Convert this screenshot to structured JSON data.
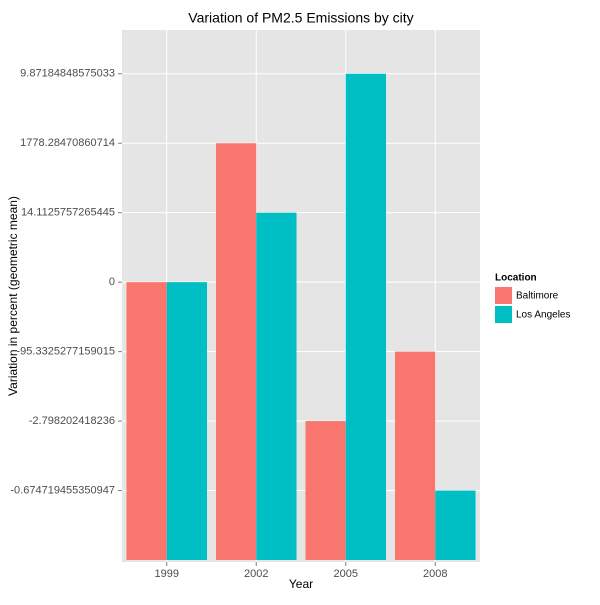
{
  "chart_data": {
    "type": "bar",
    "title": "Variation of PM2.5 Emissions by city",
    "x_label": "Year",
    "y_label": "Variation in percent (geometric mean)",
    "legend_title": "Location",
    "legend_position": "right",
    "categories": [
      "1999",
      "2002",
      "2005",
      "2008"
    ],
    "series": [
      {
        "name": "Baltimore",
        "color": "#f8766d",
        "values": [
          4,
          6,
          2,
          3
        ]
      },
      {
        "name": "Los Angeles",
        "color": "#00bfc4",
        "values": [
          4,
          5,
          7,
          1
        ]
      }
    ],
    "ylim": [
      0,
      7.63
    ],
    "yticks": [
      {
        "value": 1,
        "label": "-0.674719455350947"
      },
      {
        "value": 2,
        "label": "-2.798202418236"
      },
      {
        "value": 3,
        "label": "-95.3325277159015"
      },
      {
        "value": 4,
        "label": "0"
      },
      {
        "value": 5,
        "label": "14.1125757265445"
      },
      {
        "value": 6,
        "label": "1778.28470860714"
      },
      {
        "value": 7,
        "label": "9.87184848575033"
      }
    ],
    "grid": true,
    "panel_background": "#e5e5e5"
  }
}
